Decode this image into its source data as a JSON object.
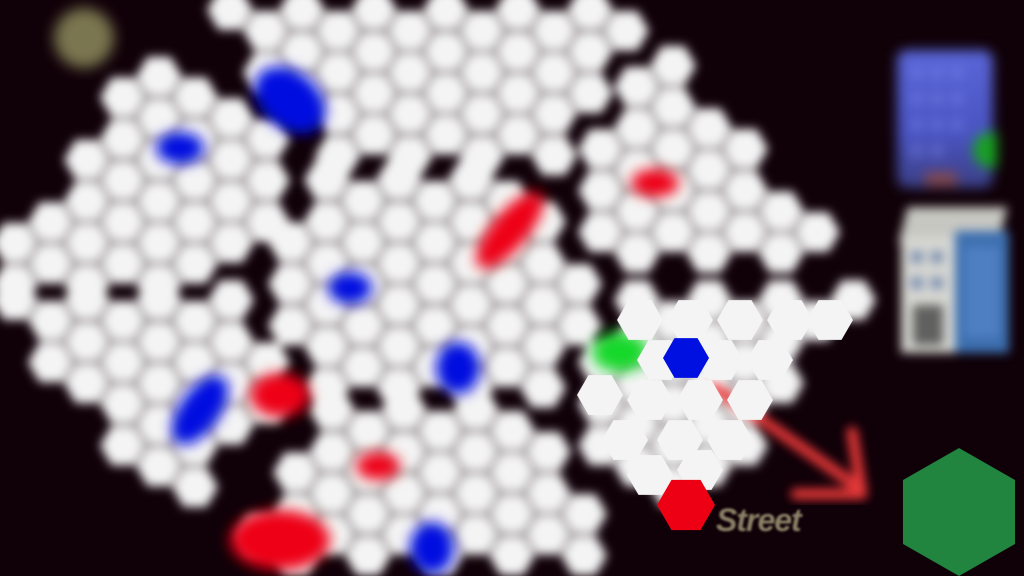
{
  "street": {
    "label": "Street"
  },
  "colors": {
    "background": "#100008",
    "cell": "#f4f4f4",
    "blue_piece": "#0010e0",
    "red_piece": "#ee0014",
    "green_piece": "#19d82a",
    "hex_button": "#21843f",
    "arrow": "#f03a3a",
    "indicator": "#7a7650"
  },
  "tiles": [
    {
      "name": "office-tower-tile",
      "icon": "office-tower-icon"
    },
    {
      "name": "apartment-building-tile",
      "icon": "apartment-building-icon"
    }
  ],
  "action": {
    "icon": "green-hexagon-icon"
  },
  "indicator": {
    "icon": "olive-dot-icon"
  }
}
